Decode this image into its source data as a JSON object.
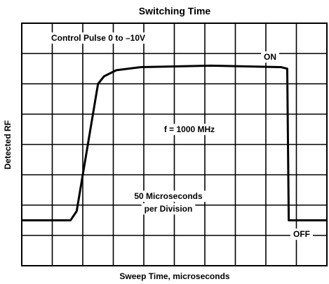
{
  "chart_data": {
    "type": "line",
    "title": "Switching Time",
    "x_label": "Sweep Time, microseconds",
    "y_label": "Detected RF",
    "annotations": [
      "Control Pulse 0 to –10V",
      "ON",
      "f = 1000 MHz",
      "50 Microseconds",
      "per Division",
      "OFF"
    ],
    "x": [
      0,
      1.6,
      1.8,
      2.5,
      2.7,
      3.1,
      3.9,
      6.2,
      8.5,
      8.7,
      8.75,
      10
    ],
    "series": [
      {
        "name": "Detected RF",
        "color": "#000000",
        "values": [
          1.5,
          1.5,
          1.8,
          6.0,
          6.25,
          6.45,
          6.55,
          6.6,
          6.55,
          6.5,
          1.5,
          1.5
        ]
      }
    ],
    "xlim": [
      0,
      10
    ],
    "ylim": [
      0,
      8
    ],
    "xticks": [
      0,
      1,
      2,
      3,
      4,
      5,
      6,
      7,
      8,
      9,
      10
    ],
    "yticks": [
      0,
      1,
      2,
      3,
      4,
      5,
      6,
      7,
      8
    ],
    "grid": true
  }
}
